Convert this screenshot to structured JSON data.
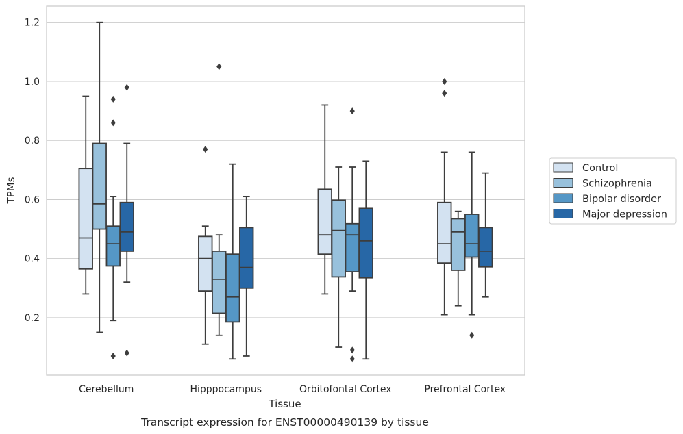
{
  "chart_data": {
    "type": "box",
    "xlabel": "Tissue",
    "ylabel": "TPMs",
    "caption": "Transcript expression for ENST00000490139 by tissue",
    "categories": [
      "Cerebellum",
      "Hipppocampus",
      "Orbitofontal Cortex",
      "Prefrontal Cortex"
    ],
    "yticks": [
      "0.2",
      "0.4",
      "0.6",
      "0.8",
      "1.0",
      "1.2"
    ],
    "ylim": [
      0.005,
      1.255
    ],
    "grid": "horizontal",
    "legend_position": "right",
    "series": [
      {
        "name": "Control",
        "color": "#d3e2f1",
        "boxes": [
          {
            "whislo": 0.28,
            "q1": 0.365,
            "med": 0.47,
            "q3": 0.705,
            "whishi": 0.95,
            "fliers": []
          },
          {
            "whislo": 0.11,
            "q1": 0.29,
            "med": 0.4,
            "q3": 0.475,
            "whishi": 0.51,
            "fliers": [
              0.77
            ]
          },
          {
            "whislo": 0.28,
            "q1": 0.415,
            "med": 0.48,
            "q3": 0.635,
            "whishi": 0.92,
            "fliers": []
          },
          {
            "whislo": 0.21,
            "q1": 0.385,
            "med": 0.45,
            "q3": 0.59,
            "whishi": 0.76,
            "fliers": [
              0.96,
              1.0
            ]
          }
        ]
      },
      {
        "name": "Schizophrenia",
        "color": "#98c1dc",
        "boxes": [
          {
            "whislo": 0.15,
            "q1": 0.5,
            "med": 0.585,
            "q3": 0.79,
            "whishi": 1.2,
            "fliers": []
          },
          {
            "whislo": 0.14,
            "q1": 0.215,
            "med": 0.33,
            "q3": 0.425,
            "whishi": 0.48,
            "fliers": [
              1.05
            ]
          },
          {
            "whislo": 0.1,
            "q1": 0.338,
            "med": 0.495,
            "q3": 0.598,
            "whishi": 0.71,
            "fliers": []
          },
          {
            "whislo": 0.24,
            "q1": 0.36,
            "med": 0.49,
            "q3": 0.535,
            "whishi": 0.56,
            "fliers": []
          }
        ]
      },
      {
        "name": "Bipolar disorder",
        "color": "#5597c6",
        "boxes": [
          {
            "whislo": 0.19,
            "q1": 0.375,
            "med": 0.45,
            "q3": 0.51,
            "whishi": 0.61,
            "fliers": [
              0.07,
              0.86,
              0.94
            ]
          },
          {
            "whislo": 0.06,
            "q1": 0.185,
            "med": 0.27,
            "q3": 0.415,
            "whishi": 0.72,
            "fliers": []
          },
          {
            "whislo": 0.29,
            "q1": 0.355,
            "med": 0.48,
            "q3": 0.518,
            "whishi": 0.71,
            "fliers": [
              0.06,
              0.09,
              0.9
            ]
          },
          {
            "whislo": 0.21,
            "q1": 0.405,
            "med": 0.45,
            "q3": 0.55,
            "whishi": 0.76,
            "fliers": [
              0.14
            ]
          }
        ]
      },
      {
        "name": "Major depression",
        "color": "#2767a6",
        "boxes": [
          {
            "whislo": 0.32,
            "q1": 0.425,
            "med": 0.49,
            "q3": 0.59,
            "whishi": 0.79,
            "fliers": [
              0.08,
              0.98
            ]
          },
          {
            "whislo": 0.07,
            "q1": 0.3,
            "med": 0.37,
            "q3": 0.505,
            "whishi": 0.61,
            "fliers": []
          },
          {
            "whislo": 0.06,
            "q1": 0.335,
            "med": 0.46,
            "q3": 0.57,
            "whishi": 0.73,
            "fliers": []
          },
          {
            "whislo": 0.27,
            "q1": 0.372,
            "med": 0.425,
            "q3": 0.505,
            "whishi": 0.69,
            "fliers": []
          }
        ]
      }
    ]
  }
}
